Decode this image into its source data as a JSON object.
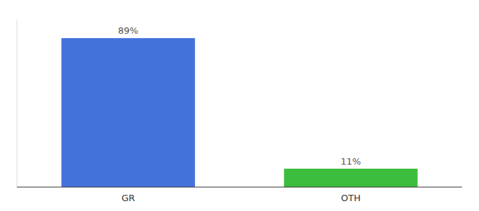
{
  "chart_data": {
    "type": "bar",
    "categories": [
      "GR",
      "OTH"
    ],
    "values": [
      89,
      11
    ],
    "value_labels": [
      "89%",
      "11%"
    ],
    "colors": [
      "#4472db",
      "#3dbd3d"
    ],
    "ylim": [
      0,
      100
    ],
    "data_labels": true,
    "tick_labels": "x",
    "grid": false
  }
}
